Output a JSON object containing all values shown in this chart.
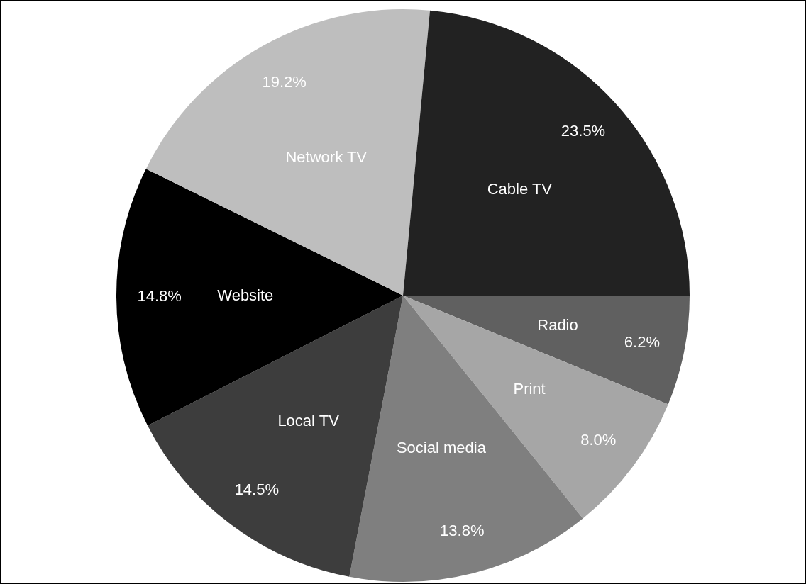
{
  "chart_data": {
    "type": "pie",
    "categories": [
      "Radio",
      "Print",
      "Social media",
      "Local TV",
      "Website",
      "Network TV",
      "Cable TV"
    ],
    "values": [
      6.2,
      8.0,
      13.8,
      14.5,
      14.8,
      19.2,
      23.5
    ],
    "colors": [
      "#606060",
      "#a6a6a6",
      "#7f7f7f",
      "#3d3d3d",
      "#000000",
      "#bebebe",
      "#222222"
    ],
    "value_labels": [
      "6.2%",
      "8.0%",
      "13.8%",
      "14.5%",
      "14.8%",
      "19.2%",
      "23.5%"
    ],
    "legend": false
  }
}
